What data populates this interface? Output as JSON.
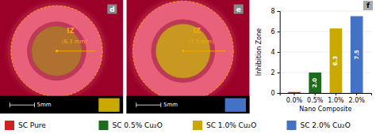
{
  "chart_data": {
    "type": "bar",
    "categories": [
      "0.0%",
      "0.5%",
      "1.0%",
      "2.0%"
    ],
    "series": [
      {
        "name": "SC Pure",
        "color": "#cc2222",
        "values": [
          0.1,
          null,
          null,
          null
        ],
        "value_labels": [
          null,
          null,
          null,
          null
        ]
      },
      {
        "name": "SC 0.5% Cu₂O",
        "color": "#1e6b1e",
        "values": [
          null,
          2.0,
          null,
          null
        ],
        "value_labels": [
          null,
          "2.0",
          null,
          null
        ]
      },
      {
        "name": "SC 1.0% Cu₂O",
        "color": "#c9a800",
        "values": [
          null,
          null,
          6.3,
          null
        ],
        "value_labels": [
          null,
          null,
          "6.3",
          null
        ]
      },
      {
        "name": "SC 2.0% Cu₂O",
        "color": "#4472c4",
        "values": [
          null,
          null,
          null,
          7.5
        ],
        "value_labels": [
          null,
          null,
          null,
          "7.5"
        ]
      }
    ],
    "xlabel": "Nano Composite",
    "ylabel": "Inhibition Zone",
    "ylim": [
      0,
      8
    ],
    "yticks": [
      0,
      2,
      4,
      6,
      8
    ],
    "grid": true,
    "data_labels": true,
    "legend": "bottom",
    "annotations": [
      "d",
      "IZ",
      "(6.3 mm)",
      "5mm",
      "e",
      "IZ",
      "(7.5 mm)",
      "5mm",
      "f"
    ]
  }
}
